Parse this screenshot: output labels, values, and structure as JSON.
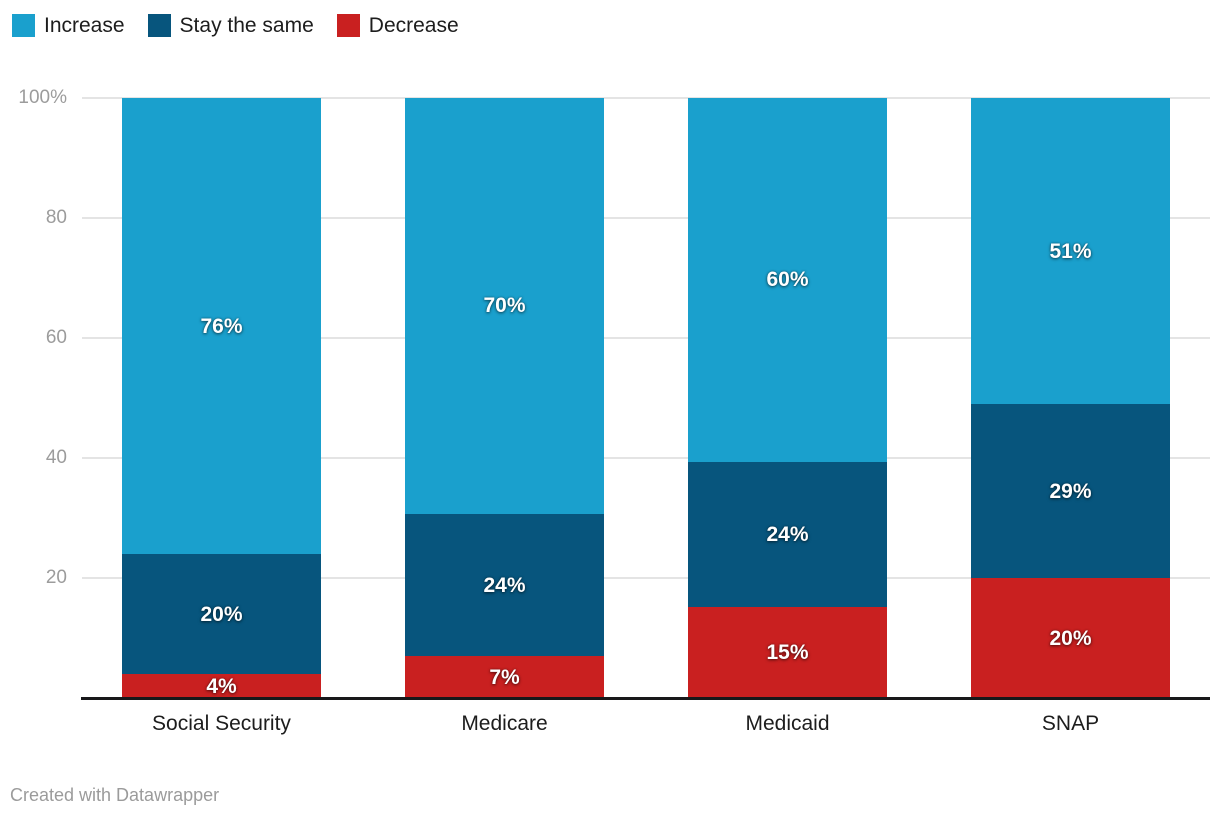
{
  "chart_data": {
    "type": "bar",
    "subtype": "stacked-100",
    "categories": [
      "Social Security",
      "Medicare",
      "Medicaid",
      "SNAP"
    ],
    "series": [
      {
        "name": "Increase",
        "color": "#1aa0cd",
        "values": [
          76,
          70,
          60,
          51
        ]
      },
      {
        "name": "Stay the same",
        "color": "#07557d",
        "values": [
          20,
          24,
          24,
          29
        ]
      },
      {
        "name": "Decrease",
        "color": "#c92020",
        "values": [
          4,
          7,
          15,
          20
        ]
      }
    ],
    "stack_order": "first-series-on-top",
    "ylim": [
      0,
      100
    ],
    "yticks": [
      {
        "value": 100,
        "label": "100%"
      },
      {
        "value": 80,
        "label": "80"
      },
      {
        "value": 60,
        "label": "60"
      },
      {
        "value": 40,
        "label": "40"
      },
      {
        "value": 20,
        "label": "20"
      }
    ],
    "value_label_suffix": "%",
    "grid": "horizontal",
    "legend_position": "top-left"
  },
  "colors": {
    "background": "#ffffff",
    "axis": "#18181a",
    "gridline": "#e4e4e4",
    "tick_label": "#9c9c9c",
    "category_label": "#1d1d1d",
    "value_label": "#ffffff"
  },
  "footer": {
    "credit": "Created with Datawrapper"
  }
}
